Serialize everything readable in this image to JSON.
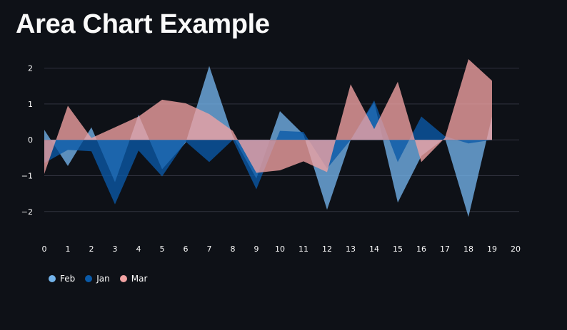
{
  "title": "Area Chart Example",
  "chart_data": {
    "type": "area",
    "title": "",
    "xlabel": "",
    "ylabel": "",
    "x": [
      0,
      1,
      2,
      3,
      4,
      5,
      6,
      7,
      8,
      9,
      10,
      11,
      12,
      13,
      14,
      15,
      16,
      17,
      18,
      19
    ],
    "xlim": [
      0,
      20
    ],
    "ylim": [
      -2.7,
      2.35
    ],
    "x_ticks": [
      "0",
      "1",
      "2",
      "3",
      "4",
      "5",
      "6",
      "7",
      "8",
      "9",
      "10",
      "11",
      "12",
      "13",
      "14",
      "15",
      "16",
      "17",
      "18",
      "19",
      "20"
    ],
    "y_ticks": [
      "2",
      "1",
      "0",
      "−1",
      "−2"
    ],
    "y_tick_values": [
      2,
      1,
      0,
      -1,
      -2
    ],
    "grid": true,
    "legend_position": "bottom-left",
    "series": [
      {
        "name": "Feb",
        "color": "#73b3ea",
        "values": [
          0.28,
          -0.73,
          0.35,
          -1.18,
          0.7,
          -0.82,
          -0.08,
          2.06,
          0.1,
          -1.08,
          0.8,
          0.15,
          -1.95,
          0.0,
          1.05,
          -1.75,
          -0.45,
          0.05,
          -2.15,
          0.65
        ]
      },
      {
        "name": "Jan",
        "color": "#0a5aa8",
        "values": [
          -0.65,
          -0.28,
          -0.32,
          -1.8,
          -0.3,
          -1.02,
          -0.05,
          -0.62,
          0.0,
          -1.38,
          0.25,
          0.22,
          -0.8,
          0.0,
          1.1,
          -0.62,
          0.65,
          0.1,
          -0.1,
          0.0
        ]
      },
      {
        "name": "Mar",
        "color": "#f2a3a3",
        "values": [
          -0.95,
          0.95,
          0.05,
          0.35,
          0.65,
          1.12,
          1.02,
          0.72,
          0.25,
          -0.92,
          -0.85,
          -0.6,
          -0.9,
          1.55,
          0.3,
          1.62,
          -0.62,
          0.05,
          2.25,
          1.65
        ]
      }
    ]
  }
}
